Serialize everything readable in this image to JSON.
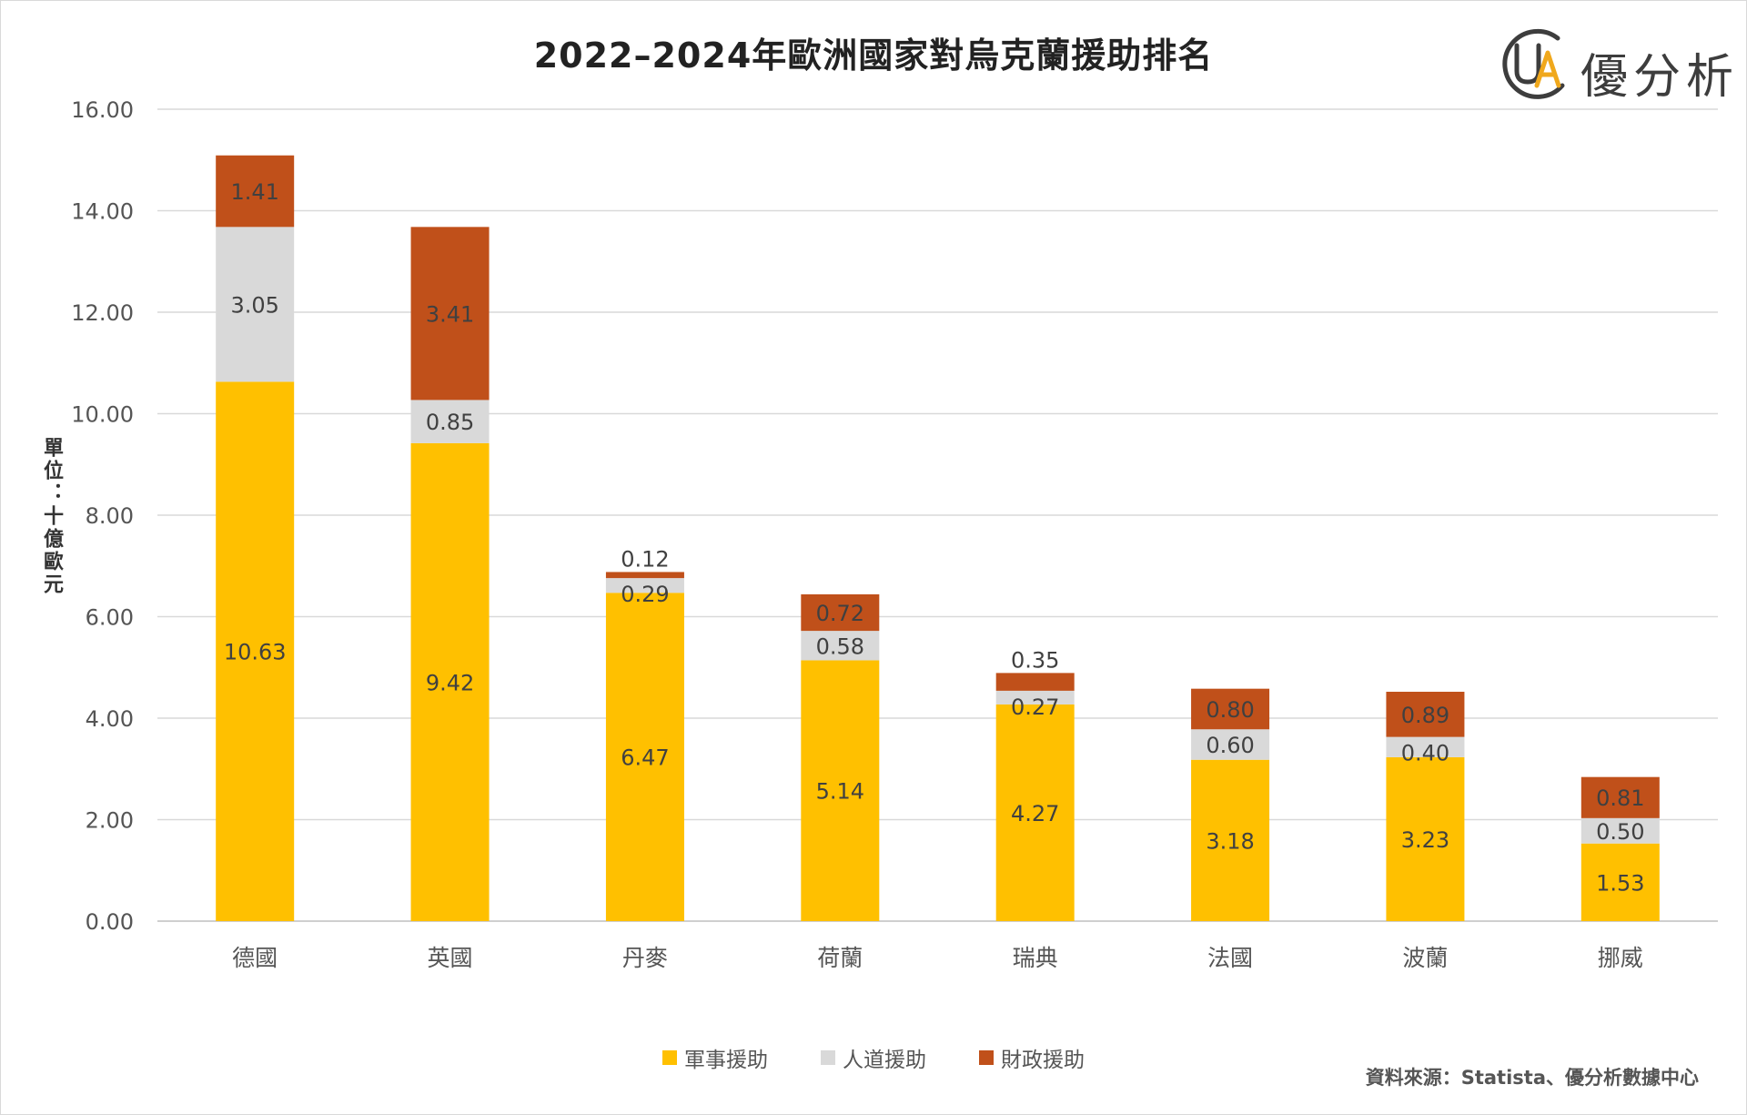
{
  "chart_data": {
    "type": "bar",
    "stacked": true,
    "title": "2022–2024年歐洲國家對烏克蘭援助排名",
    "ylabel": "單位：十億歐元",
    "xlabel": "",
    "ylim": [
      0,
      16
    ],
    "yticks": [
      "0.00",
      "2.00",
      "4.00",
      "6.00",
      "8.00",
      "10.00",
      "12.00",
      "14.00",
      "16.00"
    ],
    "grid": true,
    "legend_position": "bottom",
    "categories": [
      "德國",
      "英國",
      "丹麥",
      "荷蘭",
      "瑞典",
      "法國",
      "波蘭",
      "挪威"
    ],
    "series": [
      {
        "name": "軍事援助",
        "color": "#FFC000",
        "values": [
          10.63,
          9.42,
          6.47,
          5.14,
          4.27,
          3.18,
          3.23,
          1.53
        ],
        "labels": [
          "10.63",
          "9.42",
          "6.47",
          "5.14",
          "4.27",
          "3.18",
          "3.23",
          "1.53"
        ]
      },
      {
        "name": "人道援助",
        "color": "#D9D9D9",
        "values": [
          3.05,
          0.85,
          0.29,
          0.58,
          0.27,
          0.6,
          0.4,
          0.5
        ],
        "labels": [
          "3.05",
          "0.85",
          "0.29",
          "0.58",
          "0.27",
          "0.60",
          "0.40",
          "0.50"
        ]
      },
      {
        "name": "財政援助",
        "color": "#C0501A",
        "values": [
          1.41,
          3.41,
          0.12,
          0.72,
          0.35,
          0.8,
          0.89,
          0.81
        ],
        "labels": [
          "1.41",
          "3.41",
          "0.12",
          "0.72",
          "0.35",
          "0.80",
          "0.89",
          "0.81"
        ]
      }
    ]
  },
  "logo": {
    "text": "優分析",
    "accent": "#F0A81C",
    "icon": "ua-logo-icon"
  },
  "source": "資料來源：Statista、優分析數據中心"
}
